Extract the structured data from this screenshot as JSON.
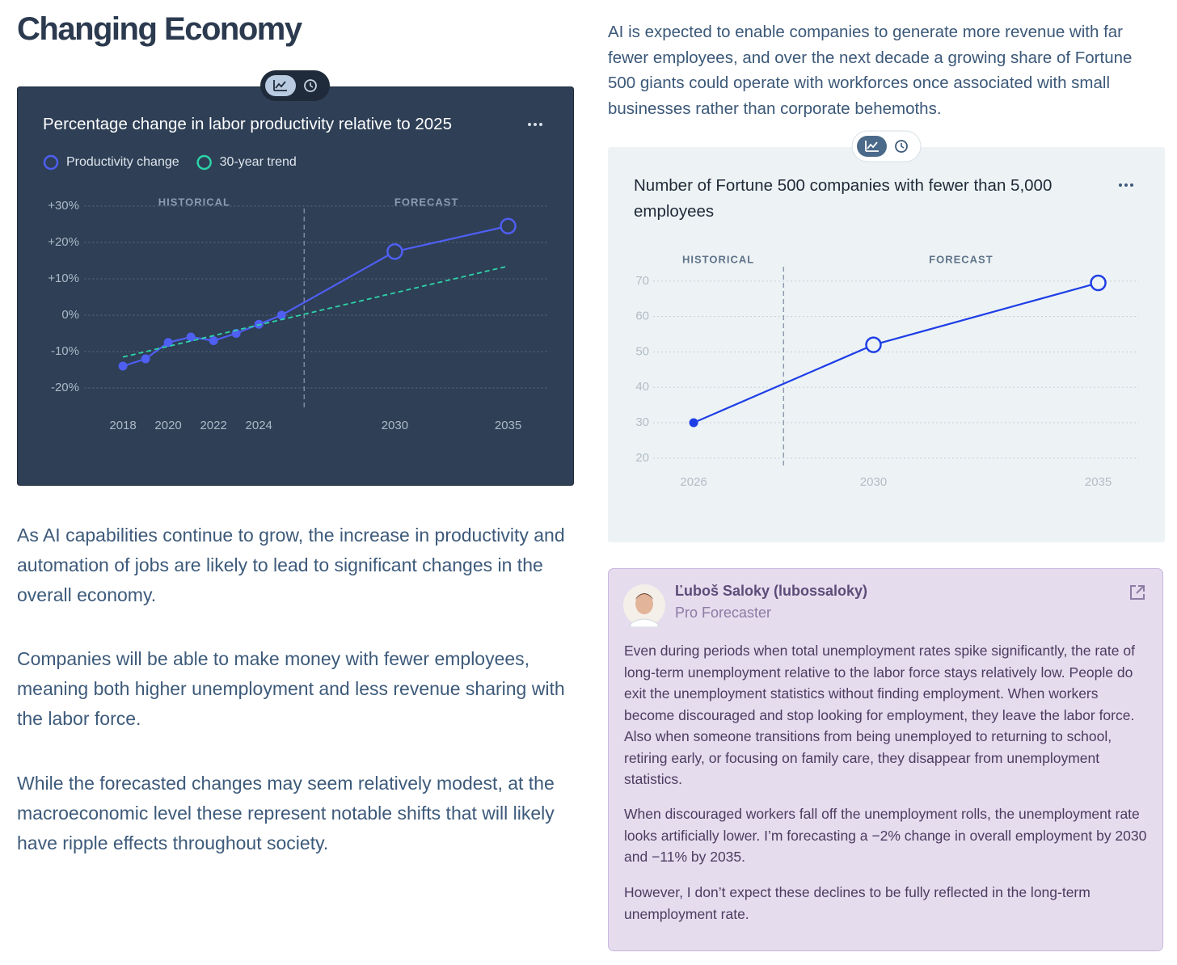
{
  "header": {
    "title": "Changing Economy"
  },
  "intro": "AI is expected to enable companies to generate more revenue with far fewer employees, and over the next decade a growing share of Fortune 500 giants could operate with workforces once associated with small businesses rather than corporate behemoths.",
  "paragraphs": [
    "As AI capabilities continue to grow, the increase in productivity and automation of jobs are likely to lead to significant changes in the overall economy.",
    "Companies will be able to make money with fewer employees, meaning both higher unemployment and less revenue sharing with the labor force.",
    "While the forecasted changes may seem relatively modest, at the macroeconomic level these represent notable shifts that will likely have ripple effects throughout society."
  ],
  "chart_data": [
    {
      "type": "line",
      "title": "Percentage change in labor productivity relative to 2025",
      "annotations": [
        "HISTORICAL",
        "FORECAST"
      ],
      "divider": 2026,
      "xlim": [
        2016.3,
        2036.8
      ],
      "xticks": [
        2018,
        2020,
        2022,
        2024,
        2030,
        2035
      ],
      "ylim": [
        -25,
        31
      ],
      "yticks": [
        {
          "value": -20,
          "label": "-20%"
        },
        {
          "value": -10,
          "label": "-10%"
        },
        {
          "value": 0,
          "label": "0%"
        },
        {
          "value": 10,
          "label": "+10%"
        },
        {
          "value": 20,
          "label": "+20%"
        },
        {
          "value": 30,
          "label": "+30%"
        }
      ],
      "grid": true,
      "legend": "top-left",
      "series": [
        {
          "name": "Productivity change",
          "color": "#4f5ff2",
          "x": [
            2018,
            2019,
            2020,
            2021,
            2022,
            2023,
            2024,
            2025,
            2030,
            2035
          ],
          "values": [
            -14,
            -12,
            -7.5,
            -6,
            -7,
            -5,
            -2.5,
            0,
            17.5,
            24.5
          ]
        },
        {
          "name": "30-year trend",
          "color": "#2dd4a7",
          "dashed": true,
          "markers": false,
          "x": [
            2018,
            2035
          ],
          "values": [
            -11.5,
            13.5
          ]
        }
      ]
    },
    {
      "type": "line",
      "title": "Number of Fortune 500 companies with fewer than 5,000 employees",
      "annotations": [
        "HISTORICAL",
        "FORECAST"
      ],
      "divider": 2028,
      "xlim": [
        2025.1,
        2035.9
      ],
      "xticks": [
        2026,
        2030,
        2035
      ],
      "ylim": [
        18,
        73
      ],
      "yticks": [
        20,
        30,
        40,
        50,
        60,
        70
      ],
      "grid": true,
      "series": [
        {
          "color": "#1f3fe6",
          "x": [
            2026,
            2030,
            2035
          ],
          "values": [
            30,
            52,
            69.5
          ]
        }
      ]
    }
  ],
  "comment": {
    "author": "Ľuboš Saloky (lubossaloky)",
    "role": "Pro Forecaster",
    "paragraphs": [
      "Even during periods when total unemployment rates spike significantly, the rate of long-term unemployment relative to the labor force stays relatively low. People do exit the unemployment statistics without finding employment. When workers become discouraged and stop looking for employment, they leave the labor force. Also when someone transitions from being unemployed to returning to school, retiring early, or focusing on family care, they disappear from unemployment statistics.",
      "When discouraged workers fall off the unemployment rolls, the unemployment rate looks artificially lower. I’m forecasting a −2% change in overall employment by 2030 and −11% by 2035.",
      "However, I don’t expect these declines to be fully reflected in the long-term unemployment rate."
    ]
  }
}
